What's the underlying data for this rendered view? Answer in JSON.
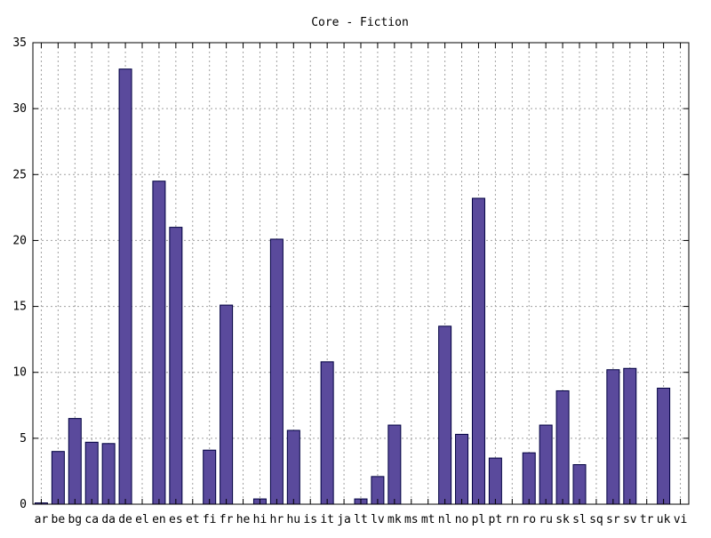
{
  "chart_data": {
    "type": "bar",
    "title": "Core - Fiction",
    "xlabel": "",
    "ylabel": "",
    "ylim": [
      0,
      35
    ],
    "yticks": [
      0,
      5,
      10,
      15,
      20,
      25,
      30,
      35
    ],
    "grid": true,
    "bar_color": "#5a4a9c",
    "categories": [
      "ar",
      "be",
      "bg",
      "ca",
      "da",
      "de",
      "el",
      "en",
      "es",
      "et",
      "fi",
      "fr",
      "he",
      "hi",
      "hr",
      "hu",
      "is",
      "it",
      "ja",
      "lt",
      "lv",
      "mk",
      "ms",
      "mt",
      "nl",
      "no",
      "pl",
      "pt",
      "rn",
      "ro",
      "ru",
      "sk",
      "sl",
      "sq",
      "sr",
      "sv",
      "tr",
      "uk",
      "vi"
    ],
    "values": [
      0.1,
      4.0,
      6.5,
      4.7,
      4.6,
      33.0,
      0,
      24.5,
      21.0,
      0,
      4.1,
      15.1,
      0,
      0.4,
      20.1,
      5.6,
      0,
      10.8,
      0,
      0.4,
      2.1,
      6.0,
      0,
      0,
      13.5,
      5.3,
      23.2,
      3.5,
      0,
      3.9,
      6.0,
      8.6,
      3.0,
      0,
      10.2,
      10.3,
      0,
      8.8,
      0
    ]
  }
}
